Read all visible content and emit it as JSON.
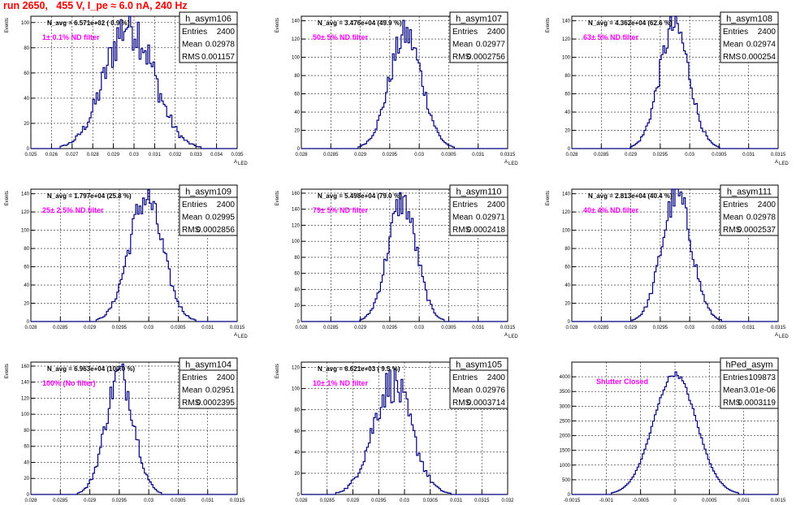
{
  "page": {
    "title": "run 2650,   455 V, I_pe ≈ 6.0 nA, 240 Hz"
  },
  "colors": {
    "title": "#ff0000",
    "histogram": "#000080",
    "filter_label": "#ff00ff",
    "grid": "#000000"
  },
  "chart_data": [
    {
      "type": "bar",
      "name": "h_asym106",
      "navg_text": "N_avg = 6.571e+02 ( 0.9 %)",
      "filter_text": "1± 0.1% ND filter",
      "stats": {
        "entries_label": "Entries",
        "entries": "2400",
        "mean_label": "Mean",
        "mean": "0.02978",
        "rms_label": "RMS",
        "rms": "0.001157"
      },
      "xlabel": "A_LED",
      "ylabel": "Events",
      "xlim": [
        0.025,
        0.035
      ],
      "ylim": [
        0,
        105
      ],
      "xticks": [
        0.025,
        0.026,
        0.027,
        0.028,
        0.029,
        0.03,
        0.031,
        0.032,
        0.033,
        0.034,
        0.035
      ],
      "xtick_labels": [
        "0.025",
        "0.026",
        "0.027",
        "0.028",
        "0.029",
        "0.03",
        "0.031",
        "0.032",
        "0.033",
        "0.034",
        "0.035"
      ],
      "yticks": [
        0,
        20,
        40,
        60,
        80,
        100
      ],
      "mean": 0.02978,
      "rms": 0.001157,
      "peak": 100,
      "jagged": 0.22
    },
    {
      "type": "bar",
      "name": "h_asym107",
      "navg_text": "N_avg = 3.476e+04 (49.9 %)",
      "filter_text": "50± 5% ND filter",
      "stats": {
        "entries_label": "Entries",
        "entries": "2400",
        "mean_label": "Mean",
        "mean": "0.02977",
        "rms_label": "RMS",
        "rms": "0.0002756"
      },
      "xlabel": "A_LED",
      "ylabel": "Events",
      "xlim": [
        0.028,
        0.0315
      ],
      "ylim": [
        0,
        145
      ],
      "xticks": [
        0.028,
        0.0285,
        0.029,
        0.0295,
        0.03,
        0.0305,
        0.031,
        0.0315
      ],
      "xtick_labels": [
        "0.028",
        "0.0285",
        "0.029",
        "0.0295",
        "0.03",
        "0.0305",
        "0.031",
        "0.0315"
      ],
      "yticks": [
        0,
        20,
        40,
        60,
        80,
        100,
        120,
        140
      ],
      "mean": 0.02977,
      "rms": 0.0002756,
      "peak": 125,
      "jagged": 0.14
    },
    {
      "type": "bar",
      "name": "h_asym108",
      "navg_text": "N_avg = 4.362e+04 (62.6 %)",
      "filter_text": "63± 5% ND filter",
      "stats": {
        "entries_label": "Entries",
        "entries": "2400",
        "mean_label": "Mean",
        "mean": "0.02974",
        "rms_label": "RMS",
        "rms": "0.000254"
      },
      "xlabel": "A_LED",
      "ylabel": "Events",
      "xlim": [
        0.028,
        0.0315
      ],
      "ylim": [
        0,
        145
      ],
      "xticks": [
        0.028,
        0.0285,
        0.029,
        0.0295,
        0.03,
        0.0305,
        0.031,
        0.0315
      ],
      "xtick_labels": [
        "0.028",
        "0.0285",
        "0.029",
        "0.0295",
        "0.03",
        "0.0305",
        "0.031",
        "0.0315"
      ],
      "yticks": [
        0,
        20,
        40,
        60,
        80,
        100,
        120,
        140
      ],
      "mean": 0.02974,
      "rms": 0.000254,
      "peak": 134,
      "jagged": 0.13
    },
    {
      "type": "bar",
      "name": "h_asym109",
      "navg_text": "N_avg = 1.797e+04 (25.8 %)",
      "filter_text": "25± 2.5% ND filter",
      "stats": {
        "entries_label": "Entries",
        "entries": "2400",
        "mean_label": "Mean",
        "mean": "0.02995",
        "rms_label": "RMS",
        "rms": "0.0002856"
      },
      "xlabel": "A_LED",
      "ylabel": "Events",
      "xlim": [
        0.028,
        0.0315
      ],
      "ylim": [
        0,
        145
      ],
      "xticks": [
        0.028,
        0.0285,
        0.029,
        0.0295,
        0.03,
        0.0305,
        0.031,
        0.0315
      ],
      "xtick_labels": [
        "0.028",
        "0.0285",
        "0.029",
        "0.0295",
        "0.03",
        "0.0305",
        "0.031",
        "0.0315"
      ],
      "yticks": [
        0,
        20,
        40,
        60,
        80,
        100,
        120,
        140
      ],
      "mean": 0.02995,
      "rms": 0.0002856,
      "peak": 135,
      "jagged": 0.14
    },
    {
      "type": "bar",
      "name": "h_asym110",
      "navg_text": "N_avg = 5.498e+04 (79.0 %)",
      "filter_text": "79± 5% ND filter",
      "stats": {
        "entries_label": "Entries",
        "entries": "2400",
        "mean_label": "Mean",
        "mean": "0.02971",
        "rms_label": "RMS",
        "rms": "0.0002418"
      },
      "xlabel": "A_LED",
      "ylabel": "Events",
      "xlim": [
        0.028,
        0.0315
      ],
      "ylim": [
        0,
        165
      ],
      "xticks": [
        0.028,
        0.0285,
        0.029,
        0.0295,
        0.03,
        0.0305,
        0.031,
        0.0315
      ],
      "xtick_labels": [
        "0.028",
        "0.0285",
        "0.029",
        "0.0295",
        "0.03",
        "0.0305",
        "0.031",
        "0.0315"
      ],
      "yticks": [
        0,
        20,
        40,
        60,
        80,
        100,
        120,
        140,
        160
      ],
      "mean": 0.02971,
      "rms": 0.0002418,
      "peak": 150,
      "jagged": 0.13
    },
    {
      "type": "bar",
      "name": "h_asym111",
      "navg_text": "N_avg = 2.813e+04 (40.4 %)",
      "filter_text": "40± 4% ND filter",
      "stats": {
        "entries_label": "Entries",
        "entries": "2400",
        "mean_label": "Mean",
        "mean": "0.02978",
        "rms_label": "RMS",
        "rms": "0.0002537"
      },
      "xlabel": "A_LED",
      "ylabel": "Events",
      "xlim": [
        0.028,
        0.0315
      ],
      "ylim": [
        0,
        145
      ],
      "xticks": [
        0.028,
        0.0285,
        0.029,
        0.0295,
        0.03,
        0.0305,
        0.031,
        0.0315
      ],
      "xtick_labels": [
        "0.028",
        "0.0285",
        "0.029",
        "0.0295",
        "0.03",
        "0.0305",
        "0.031",
        "0.0315"
      ],
      "yticks": [
        0,
        20,
        40,
        60,
        80,
        100,
        120,
        140
      ],
      "mean": 0.02978,
      "rms": 0.0002537,
      "peak": 138,
      "jagged": 0.13
    },
    {
      "type": "bar",
      "name": "h_asym104",
      "navg_text": "N_avg = 6.963e+04 (100.0 %)",
      "filter_text": "100% (No filter)",
      "stats": {
        "entries_label": "Entries",
        "entries": "2400",
        "mean_label": "Mean",
        "mean": "0.02951",
        "rms_label": "RMS",
        "rms": "0.0002395"
      },
      "xlabel": "A_LED",
      "ylabel": "Events",
      "xlim": [
        0.028,
        0.0315
      ],
      "ylim": [
        0,
        165
      ],
      "xticks": [
        0.028,
        0.0285,
        0.029,
        0.0295,
        0.03,
        0.0305,
        0.031,
        0.0315
      ],
      "xtick_labels": [
        "0.028",
        "0.0285",
        "0.029",
        "0.0295",
        "0.03",
        "0.0305",
        "0.031",
        "0.0315"
      ],
      "yticks": [
        0,
        20,
        40,
        60,
        80,
        100,
        120,
        140,
        160
      ],
      "mean": 0.02951,
      "rms": 0.0002395,
      "peak": 150,
      "jagged": 0.14
    },
    {
      "type": "bar",
      "name": "h_asym105",
      "navg_text": "N_avg = 6.621e+03 ( 9.5 %)",
      "filter_text": "10± 1% ND filter",
      "stats": {
        "entries_label": "Entries",
        "entries": "2400",
        "mean_label": "Mean",
        "mean": "0.02976",
        "rms_label": "RMS",
        "rms": "0.0003714"
      },
      "xlabel": "A_LED",
      "ylabel": "Events",
      "xlim": [
        0.028,
        0.032
      ],
      "ylim": [
        0,
        125
      ],
      "xticks": [
        0.028,
        0.0285,
        0.029,
        0.0295,
        0.03,
        0.0305,
        0.031,
        0.0315,
        0.032
      ],
      "xtick_labels": [
        "0.028",
        "0.0285",
        "0.029",
        "0.0295",
        "0.03",
        "0.0305",
        "0.031",
        "0.0315",
        "0.032"
      ],
      "yticks": [
        0,
        20,
        40,
        60,
        80,
        100,
        120
      ],
      "mean": 0.02976,
      "rms": 0.0003714,
      "peak": 105,
      "jagged": 0.18
    },
    {
      "type": "bar",
      "name": "hPed_asym",
      "navg_text": "",
      "filter_text": "Shutter Closed",
      "stats": {
        "entries_label": "Entries",
        "entries": "109873",
        "mean_label": "Mean",
        "mean": "3.01e-06",
        "rms_label": "RMS",
        "rms": "0.0003119"
      },
      "xlabel": "",
      "ylabel": "",
      "xlim": [
        -0.0015,
        0.0015
      ],
      "ylim": [
        0,
        4500
      ],
      "xticks": [
        -0.0015,
        -0.001,
        -0.0005,
        0,
        0.0005,
        0.001,
        0.0015
      ],
      "xtick_labels": [
        "-0.0015",
        "-0.001",
        "-0.0005",
        "0",
        "0.0005",
        "0.001",
        "0.0015"
      ],
      "yticks": [
        0,
        500,
        1000,
        1500,
        2000,
        2500,
        3000,
        3500,
        4000
      ],
      "mean": 0.0,
      "rms": 0.0003119,
      "peak": 4100,
      "jagged": 0.02
    }
  ]
}
